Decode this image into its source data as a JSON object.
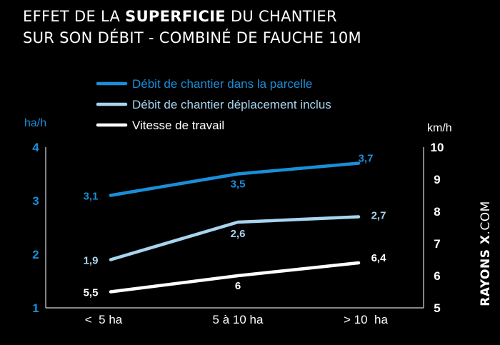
{
  "title": {
    "line1_pre": "EFFET DE LA ",
    "line1_bold": "SUPERFICIE",
    "line1_post": " DU CHANTIER",
    "line2": "SUR SON DÉBIT - COMBINÉ DE FAUCHE 10M"
  },
  "watermark": {
    "bold": "RAYONS X",
    "light": ".COM"
  },
  "colors": {
    "background": "#000000",
    "series_parcelle": "#1a8ed8",
    "series_deplacement": "#a8d4ee",
    "series_vitesse": "#ffffff",
    "axis_left": "#1a8ed8",
    "axis_right": "#ffffff"
  },
  "chart_data": {
    "type": "line",
    "categories": [
      "<  5 ha",
      "5 à 10 ha",
      "> 10  ha"
    ],
    "y_left": {
      "unit": "ha/h",
      "ticks": [
        "1",
        "2",
        "3",
        "4"
      ],
      "range": [
        1,
        4
      ]
    },
    "y_right": {
      "unit": "km/h",
      "ticks": [
        "5",
        "6",
        "7",
        "8",
        "9",
        "10"
      ],
      "range": [
        5,
        10
      ]
    },
    "legend_position": "top",
    "series": [
      {
        "name": "Débit de chantier dans la parcelle",
        "axis": "left",
        "color": "#1a8ed8",
        "values": [
          3.1,
          3.5,
          3.7
        ],
        "labels": [
          "3,1",
          "3,5",
          "3,7"
        ]
      },
      {
        "name": "Débit de chantier déplacement inclus",
        "axis": "left",
        "color": "#a8d4ee",
        "values": [
          1.9,
          2.6,
          2.7
        ],
        "labels": [
          "1,9",
          "2,6",
          "2,7"
        ]
      },
      {
        "name": "Vitesse de travail",
        "axis": "right",
        "color": "#ffffff",
        "values": [
          5.5,
          6,
          6.4
        ],
        "labels": [
          "5,5",
          "6",
          "6,4"
        ]
      }
    ]
  }
}
